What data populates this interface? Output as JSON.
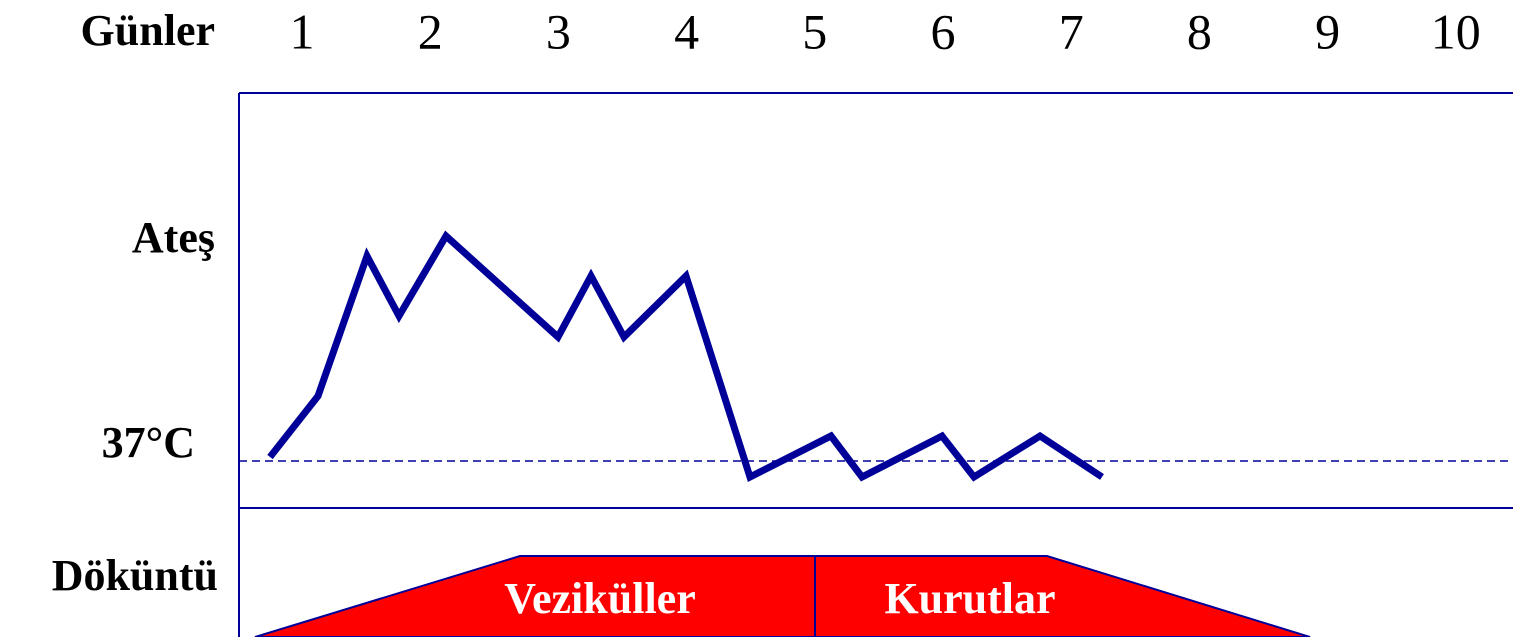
{
  "header": {
    "title": "Günler",
    "days": [
      1,
      2,
      3,
      4,
      5,
      6,
      7,
      8,
      9,
      10
    ]
  },
  "rows": {
    "fever": "Ateş",
    "baseline": "37°C",
    "rash": "Döküntü"
  },
  "rash_phases": [
    "Veziküller",
    "Kurutlar"
  ]
}
